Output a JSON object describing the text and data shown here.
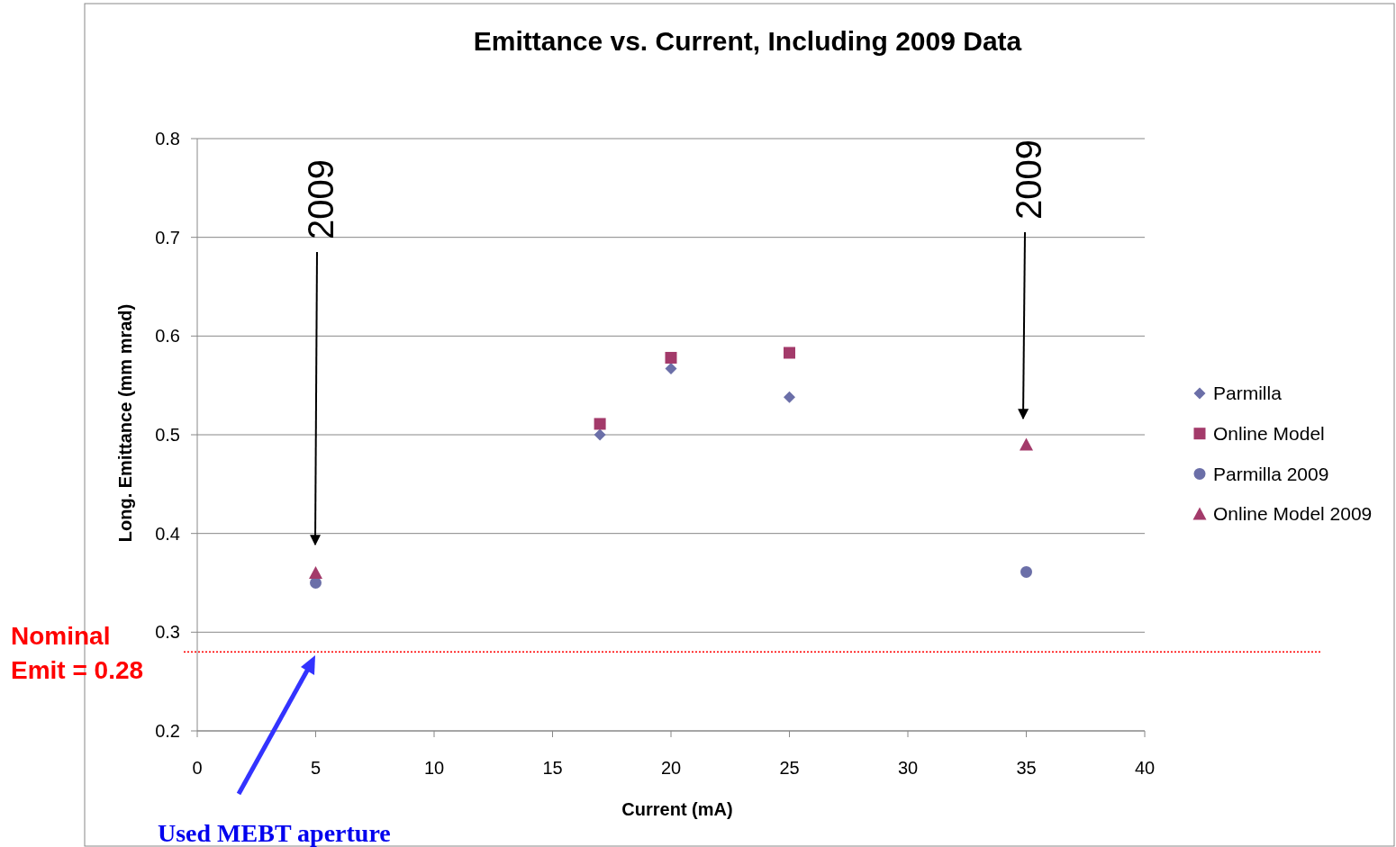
{
  "chart_data": {
    "type": "scatter",
    "title": "Emittance vs. Current, Including 2009 Data",
    "xlabel": "Current (mA)",
    "ylabel": "Long. Emittance (mm mrad)",
    "xlim": [
      0,
      40
    ],
    "xticks": [
      0,
      5,
      10,
      15,
      20,
      25,
      30,
      35,
      40
    ],
    "ylim": [
      0.2,
      0.8
    ],
    "yticks": [
      0.2,
      0.3,
      0.4,
      0.5,
      0.6,
      0.7,
      0.8
    ],
    "grid": "y",
    "legend": "right",
    "series": [
      {
        "name": "Parmilla",
        "color": "#6b6fa8",
        "marker": "diamond",
        "x": [
          17,
          20,
          25
        ],
        "values": [
          0.5,
          0.567,
          0.538
        ]
      },
      {
        "name": "Online Model",
        "color": "#a33a6a",
        "marker": "square",
        "x": [
          17,
          20,
          25
        ],
        "values": [
          0.511,
          0.578,
          0.583
        ]
      },
      {
        "name": "Parmilla 2009",
        "color": "#6b6fa8",
        "marker": "circle",
        "x": [
          5,
          35
        ],
        "values": [
          0.35,
          0.361
        ]
      },
      {
        "name": "Online Model 2009",
        "color": "#a33a6a",
        "marker": "triangle",
        "x": [
          5,
          35
        ],
        "values": [
          0.36,
          0.49
        ]
      }
    ],
    "ref_lines": [
      {
        "axis": "y",
        "value": 0.28,
        "label": "Nominal Emit = 0.28",
        "color": "#ff0000",
        "line_style": "dotted"
      }
    ],
    "annotations": [
      "2009",
      "2009",
      "Used MEBT aperture"
    ]
  }
}
